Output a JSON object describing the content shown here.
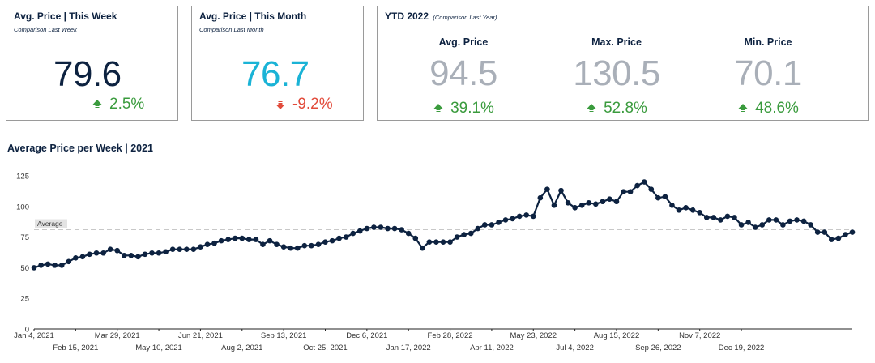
{
  "colors": {
    "navy": "#0d2240",
    "cyan": "#1ab3d6",
    "gray_value": "#a9afb8",
    "up": "#3a9b3d",
    "down": "#e24b3b",
    "line": "#0d2240"
  },
  "week": {
    "title": "Avg. Price | This Week",
    "subtitle": "Comparison Last Week",
    "value": "79.6",
    "change": "2.5%",
    "direction": "up"
  },
  "month": {
    "title": "Avg. Price | This Month",
    "subtitle": "Comparison Last Month",
    "value": "76.7",
    "change": "-9.2%",
    "direction": "down"
  },
  "ytd": {
    "title": "YTD 2022",
    "subtitle": "(Comparison Last Year)",
    "columns": [
      {
        "label": "Avg. Price",
        "value": "94.5",
        "change": "39.1%",
        "direction": "up"
      },
      {
        "label": "Max. Price",
        "value": "130.5",
        "change": "52.8%",
        "direction": "up"
      },
      {
        "label": "Min. Price",
        "value": "70.1",
        "change": "48.6%",
        "direction": "up"
      }
    ]
  },
  "chart_title": "Average Price per Week | 2021",
  "chart_data": {
    "type": "line",
    "title": "Average Price per Week | 2021",
    "xlabel": "",
    "ylabel": "",
    "ylim": [
      0,
      125
    ],
    "yticks": [
      0,
      25,
      50,
      75,
      100,
      125
    ],
    "x_tick_labels": [
      "Jan 4, 2021",
      "Feb 15, 2021",
      "Mar 29, 2021",
      "May 10, 2021",
      "Jun 21, 2021",
      "Aug 2, 2021",
      "Sep 13, 2021",
      "Oct 25, 2021",
      "Dec 6, 2021",
      "Jan 17, 2022",
      "Feb 28, 2022",
      "Apr 11, 2022",
      "May 23, 2022",
      "Jul 4, 2022",
      "Aug 15, 2022",
      "Sep 26, 2022",
      "Nov 7, 2022",
      "Dec 19, 2022"
    ],
    "x_start": "2021-01-04",
    "x_step_weeks": 1,
    "grid": false,
    "reference_line": {
      "label": "Average",
      "value": 81
    },
    "series": [
      {
        "values": [
          50,
          52,
          53,
          52,
          52,
          55,
          58,
          59,
          61,
          62,
          62,
          65,
          64,
          60,
          60,
          59,
          61,
          62,
          62,
          63,
          65,
          65,
          65,
          65,
          67,
          69,
          70,
          72,
          73,
          74,
          74,
          73,
          73,
          69,
          72,
          69,
          67,
          66,
          66,
          68,
          68,
          69,
          71,
          72,
          74,
          75,
          78,
          80,
          82,
          83,
          83,
          82,
          82,
          81,
          78,
          74,
          66,
          71,
          71,
          71,
          71,
          75,
          77,
          78,
          82,
          85,
          85,
          87,
          89,
          90,
          92,
          93,
          92,
          107,
          114,
          101,
          113,
          103,
          99,
          101,
          103,
          102,
          104,
          106,
          104,
          112,
          112,
          117,
          120,
          114,
          107,
          108,
          101,
          97,
          99,
          97,
          95,
          91,
          91,
          89,
          92,
          91,
          85,
          87,
          83,
          85,
          89,
          89,
          85,
          88,
          89,
          88,
          85,
          79,
          79,
          73,
          74,
          77,
          79
        ]
      }
    ]
  }
}
